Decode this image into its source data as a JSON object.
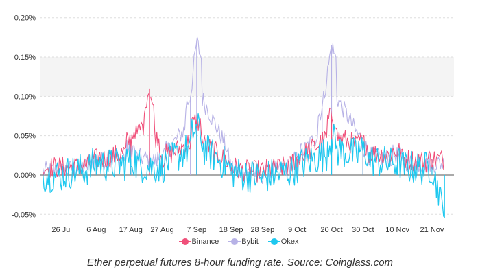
{
  "caption": "Ether perpetual futures 8-hour funding rate. Source: Coinglass.com",
  "chart_data": {
    "type": "line",
    "x_ticks": [
      "26 Jul",
      "6 Aug",
      "17 Aug",
      "27 Aug",
      "7 Sep",
      "18 Sep",
      "28 Sep",
      "9 Oct",
      "20 Oct",
      "30 Oct",
      "10 Nov",
      "21 Nov"
    ],
    "y_ticks": [
      "-0.05%",
      "0.00%",
      "0.05%",
      "0.10%",
      "0.15%",
      "0.20%"
    ],
    "ylim": [
      -0.055,
      0.205
    ],
    "grid": true,
    "legend_position": "bottom",
    "series": [
      {
        "name": "Binance",
        "color": "#f0507a",
        "x": [
          "26 Jul",
          "6 Aug",
          "17 Aug",
          "23 Aug",
          "27 Aug",
          "7 Sep",
          "18 Sep",
          "28 Sep",
          "9 Oct",
          "20 Oct",
          "30 Oct",
          "10 Nov",
          "21 Nov"
        ],
        "y": [
          0.01,
          0.02,
          0.045,
          0.11,
          0.02,
          0.07,
          0.01,
          0.005,
          0.02,
          0.075,
          0.04,
          0.03,
          0.02
        ]
      },
      {
        "name": "Bybit",
        "color": "#b7b2e6",
        "x": [
          "26 Jul",
          "6 Aug",
          "17 Aug",
          "27 Aug",
          "5 Sep",
          "7 Sep",
          "18 Sep",
          "28 Sep",
          "9 Oct",
          "17 Oct",
          "20 Oct",
          "30 Oct",
          "10 Nov",
          "21 Nov"
        ],
        "y": [
          0.005,
          0.02,
          0.035,
          0.02,
          0.1,
          0.17,
          0.01,
          0.0,
          0.02,
          0.085,
          0.165,
          0.035,
          0.025,
          0.015
        ]
      },
      {
        "name": "Okex",
        "color": "#1ec8ef",
        "x": [
          "26 Jul",
          "6 Aug",
          "17 Aug",
          "27 Aug",
          "7 Sep",
          "18 Sep",
          "28 Sep",
          "9 Oct",
          "20 Oct",
          "30 Oct",
          "10 Nov",
          "21 Nov",
          "25 Nov"
        ],
        "y": [
          0.0,
          0.015,
          0.02,
          0.01,
          0.06,
          0.005,
          -0.005,
          0.01,
          0.045,
          0.03,
          0.015,
          0.01,
          -0.055
        ]
      }
    ]
  }
}
